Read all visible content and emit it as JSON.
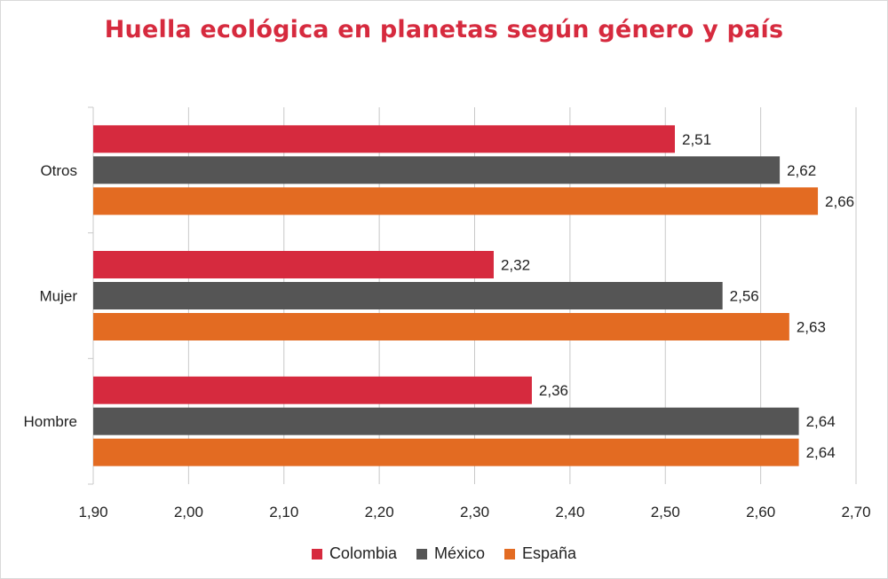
{
  "colors": {
    "title": "#d62a3e",
    "grid": "#c8c8c8",
    "label": "#222222"
  },
  "chart_data": {
    "type": "bar",
    "orientation": "horizontal",
    "title": "Huella ecológica en planetas según género y país",
    "categories": [
      "Otros",
      "Mujer",
      "Hombre"
    ],
    "series": [
      {
        "name": "Colombia",
        "color": "#d62a3e",
        "values": [
          2.51,
          2.32,
          2.36
        ],
        "labels": [
          "2,51",
          "2,32",
          "2,36"
        ]
      },
      {
        "name": "México",
        "color": "#555555",
        "values": [
          2.62,
          2.56,
          2.64
        ],
        "labels": [
          "2,62",
          "2,56",
          "2,64"
        ]
      },
      {
        "name": "España",
        "color": "#e36b22",
        "values": [
          2.66,
          2.63,
          2.64
        ],
        "labels": [
          "2,66",
          "2,63",
          "2,64"
        ]
      }
    ],
    "xlim": [
      1.9,
      2.7
    ],
    "xticks": [
      1.9,
      2.0,
      2.1,
      2.2,
      2.3,
      2.4,
      2.5,
      2.6,
      2.7
    ],
    "xtick_labels": [
      "1,90",
      "2,00",
      "2,10",
      "2,20",
      "2,30",
      "2,40",
      "2,50",
      "2,60",
      "2,70"
    ],
    "grid": true,
    "legend_position": "bottom"
  }
}
